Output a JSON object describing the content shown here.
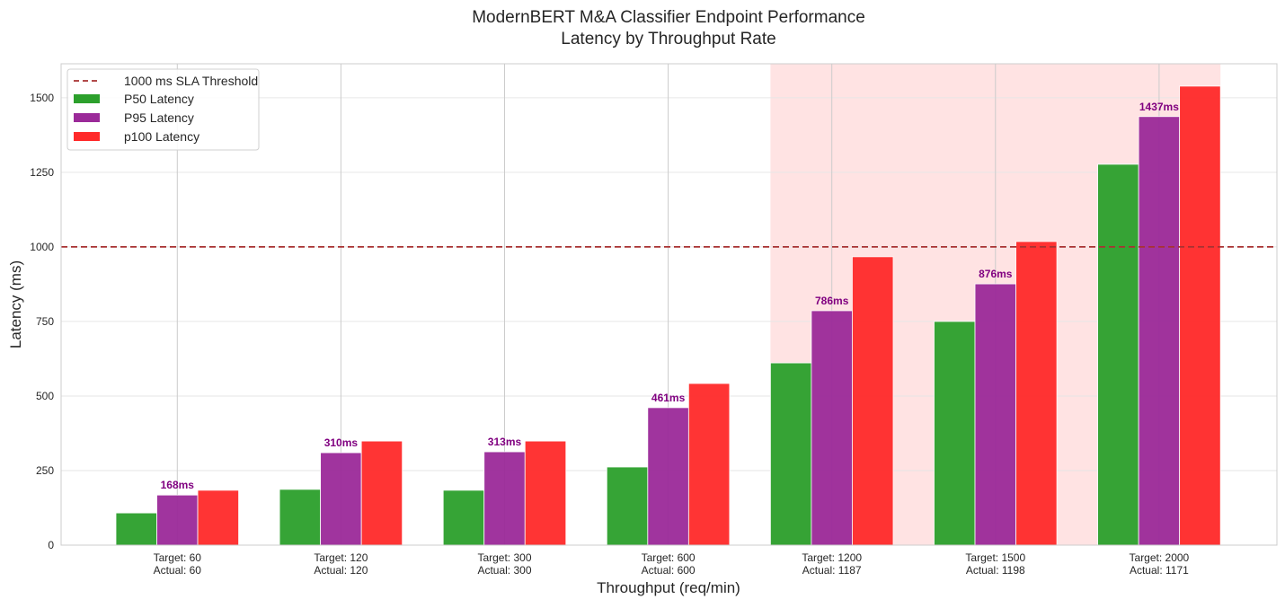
{
  "chart_data": {
    "type": "bar",
    "title": "ModernBERT M&A Classifier Endpoint Performance",
    "subtitle": "Latency by Throughput Rate",
    "xlabel": "Throughput (req/min)",
    "ylabel": "Latency (ms)",
    "ylim": [
      0,
      1614
    ],
    "yticks": [
      0,
      250,
      500,
      750,
      1000,
      1250,
      1500
    ],
    "grid": true,
    "legend_placement": "top-left",
    "categories": [
      [
        "Target: 60",
        "Actual: 60"
      ],
      [
        "Target: 120",
        "Actual: 120"
      ],
      [
        "Target: 300",
        "Actual: 300"
      ],
      [
        "Target: 600",
        "Actual: 600"
      ],
      [
        "Target: 1200",
        "Actual: 1187"
      ],
      [
        "Target: 1500",
        "Actual: 1198"
      ],
      [
        "Target: 2000",
        "Actual: 1171"
      ]
    ],
    "series": [
      {
        "name": "P50 Latency",
        "color": "#2ca02c",
        "values": [
          108,
          187,
          184,
          262,
          611,
          750,
          1277
        ]
      },
      {
        "name": "P95 Latency",
        "color": "#9b2a99",
        "values": [
          168,
          310,
          313,
          461,
          786,
          876,
          1437
        ]
      },
      {
        "name": "p100 Latency",
        "color": "#ff2a2a",
        "values": [
          184,
          349,
          349,
          542,
          967,
          1018,
          1539
        ]
      }
    ],
    "data_labels": [
      "168ms",
      "310ms",
      "313ms",
      "461ms",
      "786ms",
      "876ms",
      "1437ms"
    ],
    "threshold": {
      "name": "1000 ms SLA Threshold",
      "value": 1000,
      "color": "#a83232"
    },
    "shaded_categories": [
      "Target: 1200",
      "Target: 1500",
      "Target: 2000"
    ],
    "shade_color": "#ffcccc"
  }
}
